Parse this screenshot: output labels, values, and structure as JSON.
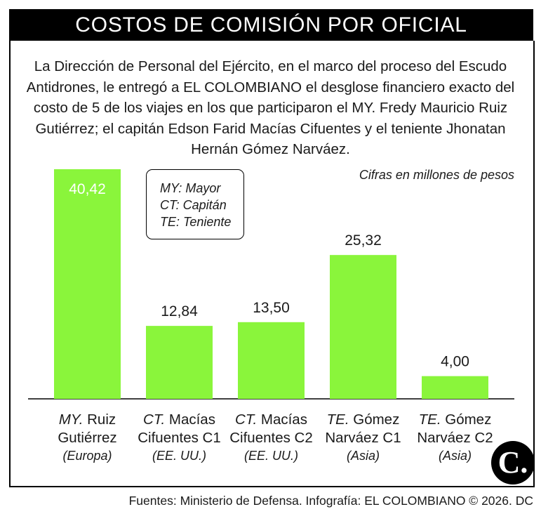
{
  "title": "COSTOS DE COMISIÓN POR OFICIAL",
  "intro": "La Dirección de Personal del Ejército, en el marco del proceso del Escudo Antidrones, le entregó a EL COLOMBIANO el desglose financiero exacto del costo de 5 de los viajes en los que participaron el MY. Fredy Mauricio Ruiz Gutiérrez; el capitán Edson Farid Macías Cifuentes y el teniente Jhonatan Hernán Gómez Narváez.",
  "unit_note": "Cifras en millones de pesos",
  "legend": [
    "MY: Mayor",
    "CT: Capitán",
    "TE: Teniente"
  ],
  "footer": "Fuentes: Ministerio de Defensa. Infografía: EL COLOMBIANO © 2026. DC",
  "logo_text": "C.",
  "colors": {
    "bar": "#8af53b",
    "title_bg": "#000000",
    "value_inside": "#ffffff"
  },
  "chart_data": {
    "type": "bar",
    "title": "COSTOS DE COMISIÓN POR OFICIAL",
    "ylabel": "",
    "unit": "Cifras en millones de pesos",
    "ylim": [
      0,
      40.42
    ],
    "grid": false,
    "categories": [
      {
        "rank": "MY.",
        "name_line1": "Ruiz",
        "name_line2": "Gutiérrez",
        "region": "(Europa)"
      },
      {
        "rank": "CT.",
        "name_line1": "Macías",
        "name_line2": "Cifuentes C1",
        "region": "(EE. UU.)"
      },
      {
        "rank": "CT.",
        "name_line1": "Macías",
        "name_line2": "Cifuentes C2",
        "region": "(EE. UU.)"
      },
      {
        "rank": "TE.",
        "name_line1": "Gómez",
        "name_line2": "Narváez C1",
        "region": "(Asia)"
      },
      {
        "rank": "TE.",
        "name_line1": "Gómez",
        "name_line2": "Narváez C2",
        "region": "(Asia)"
      }
    ],
    "values": [
      40.42,
      12.84,
      13.5,
      25.32,
      4.0
    ],
    "value_labels": [
      "40,42",
      "12,84",
      "13,50",
      "25,32",
      "4,00"
    ]
  }
}
